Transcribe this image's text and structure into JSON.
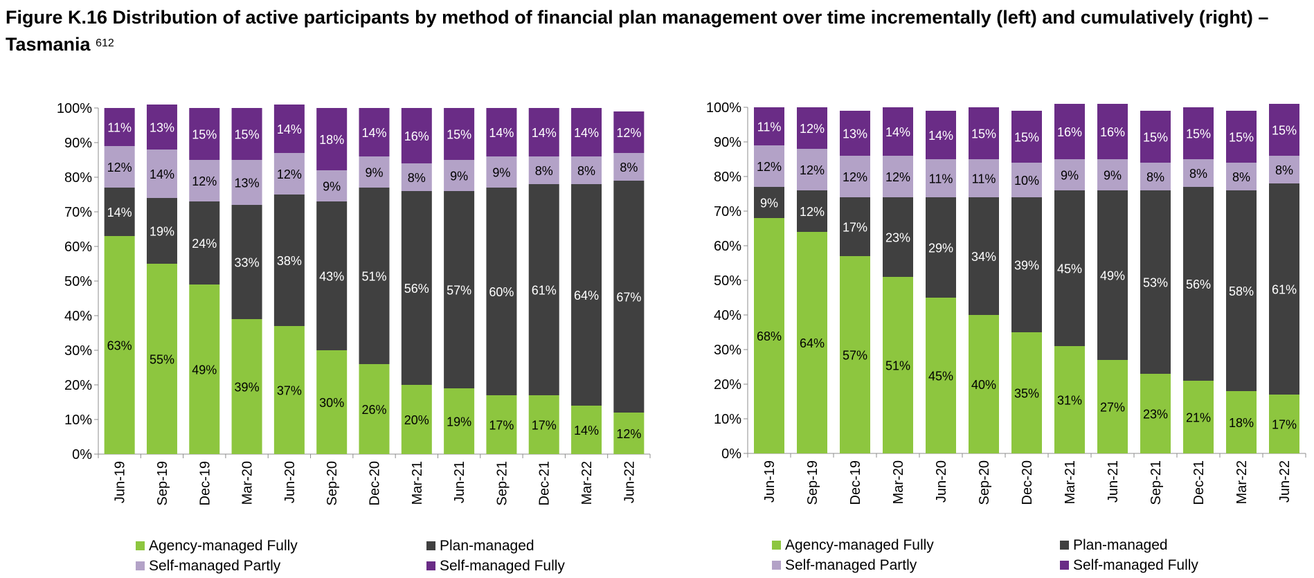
{
  "title": {
    "text": "Figure K.16 Distribution of active participants by method of financial plan management over time incrementally (left) and cumulatively (right) – Tasmania",
    "footnote": "612"
  },
  "colors": {
    "agency": "#8dc63f",
    "plan": "#404040",
    "self_partly": "#b3a2c7",
    "self_fully": "#6a2c86"
  },
  "chart_data": [
    {
      "type": "bar",
      "stacked": true,
      "position": "left",
      "title": "",
      "xlabel": "",
      "ylabel": "",
      "ylim": [
        0,
        100
      ],
      "y_ticks": [
        "0%",
        "10%",
        "20%",
        "30%",
        "40%",
        "50%",
        "60%",
        "70%",
        "80%",
        "90%",
        "100%"
      ],
      "categories": [
        "Jun-19",
        "Sep-19",
        "Dec-19",
        "Mar-20",
        "Jun-20",
        "Sep-20",
        "Dec-20",
        "Mar-21",
        "Jun-21",
        "Sep-21",
        "Dec-21",
        "Mar-22",
        "Jun-22"
      ],
      "series": [
        {
          "name": "Agency-managed Fully",
          "values": [
            63,
            55,
            49,
            39,
            37,
            30,
            26,
            20,
            19,
            17,
            17,
            14,
            12
          ],
          "labels": [
            "63%",
            "55%",
            "49%",
            "39%",
            "37%",
            "30%",
            "26%",
            "20%",
            "19%",
            "17%",
            "17%",
            "14%",
            "12%"
          ]
        },
        {
          "name": "Plan-managed",
          "values": [
            14,
            19,
            24,
            33,
            38,
            43,
            51,
            56,
            57,
            60,
            61,
            64,
            67
          ],
          "labels": [
            "14%",
            "19%",
            "24%",
            "33%",
            "38%",
            "43%",
            "51%",
            "56%",
            "57%",
            "60%",
            "61%",
            "64%",
            "67%"
          ]
        },
        {
          "name": "Self-managed Partly",
          "values": [
            12,
            14,
            12,
            13,
            12,
            9,
            9,
            8,
            9,
            9,
            8,
            8,
            8
          ],
          "labels": [
            "12%",
            "14%",
            "12%",
            "13%",
            "12%",
            "9%",
            "9%",
            "8%",
            "9%",
            "9%",
            "8%",
            "8%",
            "8%"
          ]
        },
        {
          "name": "Self-managed Fully",
          "values": [
            11,
            13,
            15,
            15,
            14,
            18,
            14,
            16,
            15,
            14,
            14,
            14,
            12
          ],
          "labels": [
            "11%",
            "13%",
            "15%",
            "15%",
            "14%",
            "18%",
            "14%",
            "16%",
            "15%",
            "14%",
            "14%",
            "14%",
            "12%"
          ]
        }
      ],
      "legend": [
        "Agency-managed Fully",
        "Plan-managed",
        "Self-managed Partly",
        "Self-managed Fully"
      ],
      "legend_position": "bottom"
    },
    {
      "type": "bar",
      "stacked": true,
      "position": "right",
      "title": "",
      "xlabel": "",
      "ylabel": "",
      "ylim": [
        0,
        100
      ],
      "y_ticks": [
        "0%",
        "10%",
        "20%",
        "30%",
        "40%",
        "50%",
        "60%",
        "70%",
        "80%",
        "90%",
        "100%"
      ],
      "categories": [
        "Jun-19",
        "Sep-19",
        "Dec-19",
        "Mar-20",
        "Jun-20",
        "Sep-20",
        "Dec-20",
        "Mar-21",
        "Jun-21",
        "Sep-21",
        "Dec-21",
        "Mar-22",
        "Jun-22"
      ],
      "series": [
        {
          "name": "Agency-managed Fully",
          "values": [
            68,
            64,
            57,
            51,
            45,
            40,
            35,
            31,
            27,
            23,
            21,
            18,
            17
          ],
          "labels": [
            "68%",
            "64%",
            "57%",
            "51%",
            "45%",
            "40%",
            "35%",
            "31%",
            "27%",
            "23%",
            "21%",
            "18%",
            "17%"
          ]
        },
        {
          "name": "Plan-managed",
          "values": [
            9,
            12,
            17,
            23,
            29,
            34,
            39,
            45,
            49,
            53,
            56,
            58,
            61
          ],
          "labels": [
            "9%",
            "12%",
            "17%",
            "23%",
            "29%",
            "34%",
            "39%",
            "45%",
            "49%",
            "53%",
            "56%",
            "58%",
            "61%"
          ]
        },
        {
          "name": "Self-managed Partly",
          "values": [
            12,
            12,
            12,
            12,
            11,
            11,
            10,
            9,
            9,
            8,
            8,
            8,
            8
          ],
          "labels": [
            "12%",
            "12%",
            "12%",
            "12%",
            "11%",
            "11%",
            "10%",
            "9%",
            "9%",
            "8%",
            "8%",
            "8%",
            "8%"
          ]
        },
        {
          "name": "Self-managed Fully",
          "values": [
            11,
            12,
            13,
            14,
            14,
            15,
            15,
            16,
            16,
            15,
            15,
            15,
            15
          ],
          "labels": [
            "11%",
            "12%",
            "13%",
            "14%",
            "14%",
            "15%",
            "15%",
            "16%",
            "16%",
            "15%",
            "15%",
            "15%",
            "15%"
          ]
        }
      ],
      "legend": [
        "Agency-managed Fully",
        "Plan-managed",
        "Self-managed Partly",
        "Self-managed Fully"
      ],
      "legend_position": "bottom"
    }
  ]
}
